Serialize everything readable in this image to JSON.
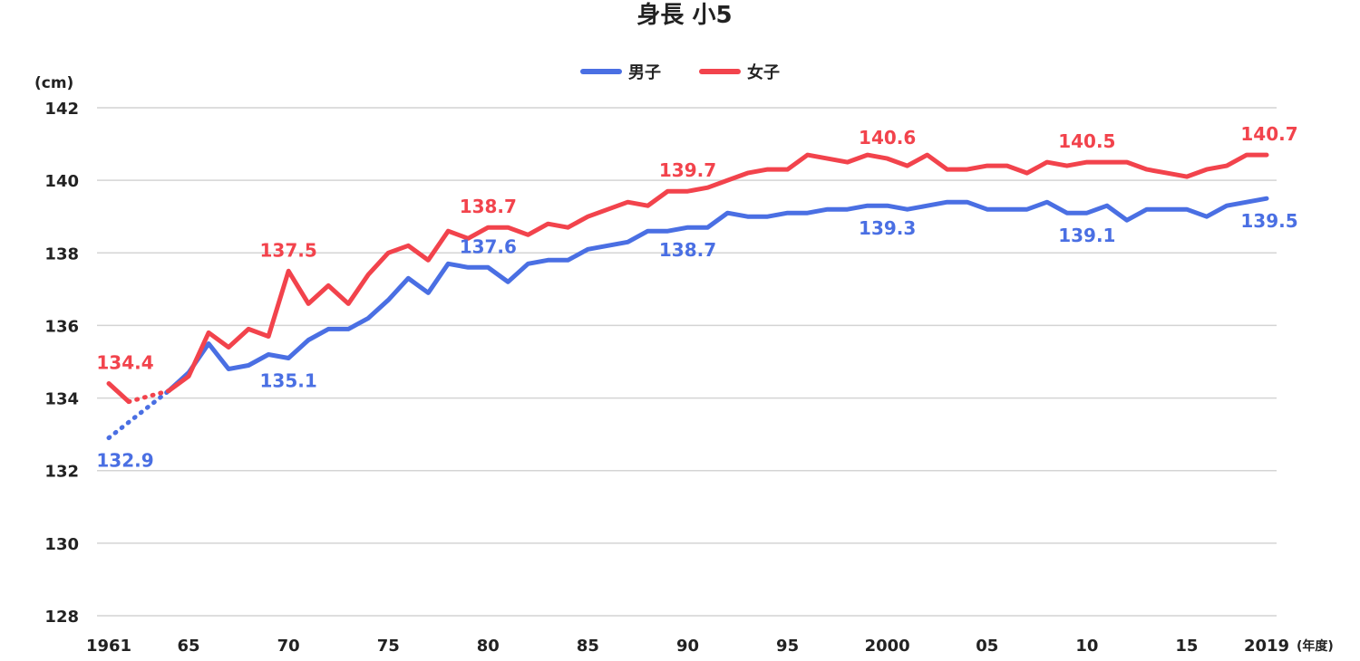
{
  "chart_data": {
    "type": "line",
    "title": "身長 小5",
    "yunit": "(cm)",
    "xunit": "(年度)",
    "ylim": [
      128,
      142
    ],
    "yticks": [
      128,
      130,
      132,
      134,
      136,
      138,
      140,
      142
    ],
    "xlim": [
      1961,
      2019
    ],
    "xticks": [
      {
        "year": 1961,
        "label": "1961"
      },
      {
        "year": 1965,
        "label": "65"
      },
      {
        "year": 1970,
        "label": "70"
      },
      {
        "year": 1975,
        "label": "75"
      },
      {
        "year": 1980,
        "label": "80"
      },
      {
        "year": 1985,
        "label": "85"
      },
      {
        "year": 1990,
        "label": "90"
      },
      {
        "year": 1995,
        "label": "95"
      },
      {
        "year": 2000,
        "label": "2000"
      },
      {
        "year": 2005,
        "label": "05"
      },
      {
        "year": 2010,
        "label": "10"
      },
      {
        "year": 2015,
        "label": "15"
      },
      {
        "year": 2019,
        "label": "2019"
      }
    ],
    "grid": true,
    "legend_position": "top-center",
    "series": [
      {
        "name": "男子",
        "color": "#4a6fe3",
        "dashed_range": [
          1961,
          1964
        ],
        "points": [
          [
            1961,
            132.9
          ],
          [
            1964,
            134.2
          ],
          [
            1965,
            134.7
          ],
          [
            1966,
            135.5
          ],
          [
            1967,
            134.8
          ],
          [
            1968,
            134.9
          ],
          [
            1969,
            135.2
          ],
          [
            1970,
            135.1
          ],
          [
            1971,
            135.6
          ],
          [
            1972,
            135.9
          ],
          [
            1973,
            135.9
          ],
          [
            1974,
            136.2
          ],
          [
            1975,
            136.7
          ],
          [
            1976,
            137.3
          ],
          [
            1977,
            136.9
          ],
          [
            1978,
            137.7
          ],
          [
            1979,
            137.6
          ],
          [
            1980,
            137.6
          ],
          [
            1981,
            137.2
          ],
          [
            1982,
            137.7
          ],
          [
            1983,
            137.8
          ],
          [
            1984,
            137.8
          ],
          [
            1985,
            138.1
          ],
          [
            1986,
            138.2
          ],
          [
            1987,
            138.3
          ],
          [
            1988,
            138.6
          ],
          [
            1989,
            138.6
          ],
          [
            1990,
            138.7
          ],
          [
            1991,
            138.7
          ],
          [
            1992,
            139.1
          ],
          [
            1993,
            139.0
          ],
          [
            1994,
            139.0
          ],
          [
            1995,
            139.1
          ],
          [
            1996,
            139.1
          ],
          [
            1997,
            139.2
          ],
          [
            1998,
            139.2
          ],
          [
            1999,
            139.3
          ],
          [
            2000,
            139.3
          ],
          [
            2001,
            139.2
          ],
          [
            2002,
            139.3
          ],
          [
            2003,
            139.4
          ],
          [
            2004,
            139.4
          ],
          [
            2005,
            139.2
          ],
          [
            2006,
            139.2
          ],
          [
            2007,
            139.2
          ],
          [
            2008,
            139.4
          ],
          [
            2009,
            139.1
          ],
          [
            2010,
            139.1
          ],
          [
            2011,
            139.3
          ],
          [
            2012,
            138.9
          ],
          [
            2013,
            139.2
          ],
          [
            2014,
            139.2
          ],
          [
            2015,
            139.2
          ],
          [
            2016,
            139.0
          ],
          [
            2017,
            139.3
          ],
          [
            2018,
            139.4
          ],
          [
            2019,
            139.5
          ]
        ],
        "labels": [
          {
            "year": 1961,
            "value": 132.9,
            "text": "132.9",
            "pos": "below"
          },
          {
            "year": 1970,
            "value": 135.1,
            "text": "135.1",
            "pos": "below"
          },
          {
            "year": 1980,
            "value": 137.6,
            "text": "137.6",
            "pos": "above"
          },
          {
            "year": 1990,
            "value": 138.7,
            "text": "138.7",
            "pos": "below"
          },
          {
            "year": 2000,
            "value": 139.3,
            "text": "139.3",
            "pos": "below"
          },
          {
            "year": 2010,
            "value": 139.1,
            "text": "139.1",
            "pos": "below"
          },
          {
            "year": 2019,
            "value": 139.5,
            "text": "139.5",
            "pos": "below"
          }
        ]
      },
      {
        "name": "女子",
        "color": "#f2434c",
        "dashed_range": [
          1962,
          1964
        ],
        "points": [
          [
            1961,
            134.4
          ],
          [
            1962,
            133.9
          ],
          [
            1964,
            134.2
          ],
          [
            1965,
            134.6
          ],
          [
            1966,
            135.8
          ],
          [
            1967,
            135.4
          ],
          [
            1968,
            135.9
          ],
          [
            1969,
            135.7
          ],
          [
            1970,
            137.5
          ],
          [
            1971,
            136.6
          ],
          [
            1972,
            137.1
          ],
          [
            1973,
            136.6
          ],
          [
            1974,
            137.4
          ],
          [
            1975,
            138.0
          ],
          [
            1976,
            138.2
          ],
          [
            1977,
            137.8
          ],
          [
            1978,
            138.6
          ],
          [
            1979,
            138.4
          ],
          [
            1980,
            138.7
          ],
          [
            1981,
            138.7
          ],
          [
            1982,
            138.5
          ],
          [
            1983,
            138.8
          ],
          [
            1984,
            138.7
          ],
          [
            1985,
            139.0
          ],
          [
            1986,
            139.2
          ],
          [
            1987,
            139.4
          ],
          [
            1988,
            139.3
          ],
          [
            1989,
            139.7
          ],
          [
            1990,
            139.7
          ],
          [
            1991,
            139.8
          ],
          [
            1992,
            140.0
          ],
          [
            1993,
            140.2
          ],
          [
            1994,
            140.3
          ],
          [
            1995,
            140.3
          ],
          [
            1996,
            140.7
          ],
          [
            1997,
            140.6
          ],
          [
            1998,
            140.5
          ],
          [
            1999,
            140.7
          ],
          [
            2000,
            140.6
          ],
          [
            2001,
            140.4
          ],
          [
            2002,
            140.7
          ],
          [
            2003,
            140.3
          ],
          [
            2004,
            140.3
          ],
          [
            2005,
            140.4
          ],
          [
            2006,
            140.4
          ],
          [
            2007,
            140.2
          ],
          [
            2008,
            140.5
          ],
          [
            2009,
            140.4
          ],
          [
            2010,
            140.5
          ],
          [
            2011,
            140.5
          ],
          [
            2012,
            140.5
          ],
          [
            2013,
            140.3
          ],
          [
            2014,
            140.2
          ],
          [
            2015,
            140.1
          ],
          [
            2016,
            140.3
          ],
          [
            2017,
            140.4
          ],
          [
            2018,
            140.7
          ],
          [
            2019,
            140.7
          ]
        ],
        "labels": [
          {
            "year": 1961,
            "value": 134.4,
            "text": "134.4",
            "pos": "above"
          },
          {
            "year": 1970,
            "value": 137.5,
            "text": "137.5",
            "pos": "above"
          },
          {
            "year": 1980,
            "value": 138.7,
            "text": "138.7",
            "pos": "above"
          },
          {
            "year": 1990,
            "value": 139.7,
            "text": "139.7",
            "pos": "above"
          },
          {
            "year": 2000,
            "value": 140.6,
            "text": "140.6",
            "pos": "above"
          },
          {
            "year": 2010,
            "value": 140.5,
            "text": "140.5",
            "pos": "above"
          },
          {
            "year": 2019,
            "value": 140.7,
            "text": "140.7",
            "pos": "above"
          }
        ]
      }
    ]
  }
}
